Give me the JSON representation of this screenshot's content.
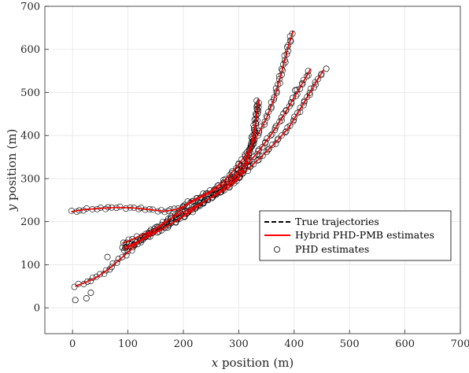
{
  "chart_data": {
    "type": "line",
    "xlabel": {
      "var": "x",
      "rest": " position (m)"
    },
    "ylabel": {
      "var": "y",
      "rest": " position (m)"
    },
    "xlim": [
      -50,
      700
    ],
    "ylim": [
      -60,
      700
    ],
    "xticks": [
      0,
      100,
      200,
      300,
      400,
      500,
      600,
      700
    ],
    "yticks": [
      0,
      100,
      200,
      300,
      400,
      500,
      600,
      700
    ],
    "grid": true,
    "legend": {
      "placement": "lower-right",
      "entries": [
        {
          "label": "True trajectories",
          "style": "dashed",
          "color": "#000000"
        },
        {
          "label": "Hybrid PHD-PMB estimates",
          "style": "solid",
          "color": "#ff0000"
        },
        {
          "label": "PHD estimates",
          "style": "marker-circle",
          "color": "#000000"
        }
      ]
    },
    "series": [
      {
        "points": [
          [
            -2,
            223
          ],
          [
            20,
            228
          ],
          [
            50,
            231
          ],
          [
            80,
            233
          ],
          [
            110,
            232
          ],
          [
            140,
            228
          ],
          [
            165,
            224
          ],
          [
            185,
            228
          ],
          [
            205,
            238
          ],
          [
            225,
            252
          ],
          [
            250,
            268
          ],
          [
            275,
            288
          ],
          [
            295,
            310
          ],
          [
            312,
            340
          ],
          [
            325,
            380
          ],
          [
            330,
            420
          ],
          [
            333,
            455
          ],
          [
            336,
            480
          ]
        ]
      },
      {
        "points": [
          [
            90,
            150
          ],
          [
            110,
            160
          ],
          [
            130,
            172
          ],
          [
            150,
            182
          ],
          [
            165,
            195
          ],
          [
            180,
            210
          ],
          [
            195,
            228
          ],
          [
            210,
            245
          ],
          [
            230,
            258
          ],
          [
            250,
            272
          ],
          [
            270,
            290
          ],
          [
            290,
            318
          ],
          [
            310,
            350
          ],
          [
            330,
            392
          ],
          [
            350,
            440
          ],
          [
            365,
            490
          ],
          [
            378,
            550
          ],
          [
            390,
            610
          ],
          [
            398,
            642
          ]
        ]
      },
      {
        "points": [
          [
            93,
            140
          ],
          [
            115,
            152
          ],
          [
            135,
            168
          ],
          [
            160,
            183
          ],
          [
            185,
            200
          ],
          [
            210,
            220
          ],
          [
            235,
            243
          ],
          [
            260,
            265
          ],
          [
            285,
            292
          ],
          [
            310,
            325
          ],
          [
            335,
            362
          ],
          [
            360,
            405
          ],
          [
            385,
            455
          ],
          [
            410,
            510
          ],
          [
            430,
            555
          ]
        ]
      },
      {
        "points": [
          [
            93,
            135
          ],
          [
            115,
            150
          ],
          [
            140,
            167
          ],
          [
            165,
            185
          ],
          [
            190,
            205
          ],
          [
            215,
            228
          ],
          [
            240,
            248
          ],
          [
            265,
            270
          ],
          [
            290,
            293
          ],
          [
            315,
            320
          ],
          [
            340,
            350
          ],
          [
            365,
            382
          ],
          [
            390,
            418
          ],
          [
            415,
            470
          ],
          [
            440,
            525
          ],
          [
            453,
            552
          ]
        ]
      },
      {
        "points": [
          [
            5,
            50
          ],
          [
            25,
            60
          ],
          [
            45,
            72
          ],
          [
            65,
            90
          ],
          [
            85,
            112
          ],
          [
            105,
            135
          ],
          [
            125,
            160
          ],
          [
            145,
            180
          ],
          [
            165,
            198
          ],
          [
            185,
            213
          ],
          [
            205,
            225
          ],
          [
            225,
            238
          ],
          [
            245,
            252
          ],
          [
            265,
            266
          ],
          [
            285,
            282
          ],
          [
            300,
            300
          ],
          [
            312,
            330
          ],
          [
            320,
            360
          ],
          [
            326,
            400
          ],
          [
            330,
            430
          ],
          [
            333,
            460
          ],
          [
            335,
            485
          ]
        ]
      }
    ],
    "phd_outliers": [
      [
        5,
        18
      ],
      [
        25,
        22
      ],
      [
        33,
        35
      ],
      [
        63,
        118
      ],
      [
        90,
        140
      ],
      [
        402,
        505
      ],
      [
        458,
        555
      ]
    ]
  }
}
